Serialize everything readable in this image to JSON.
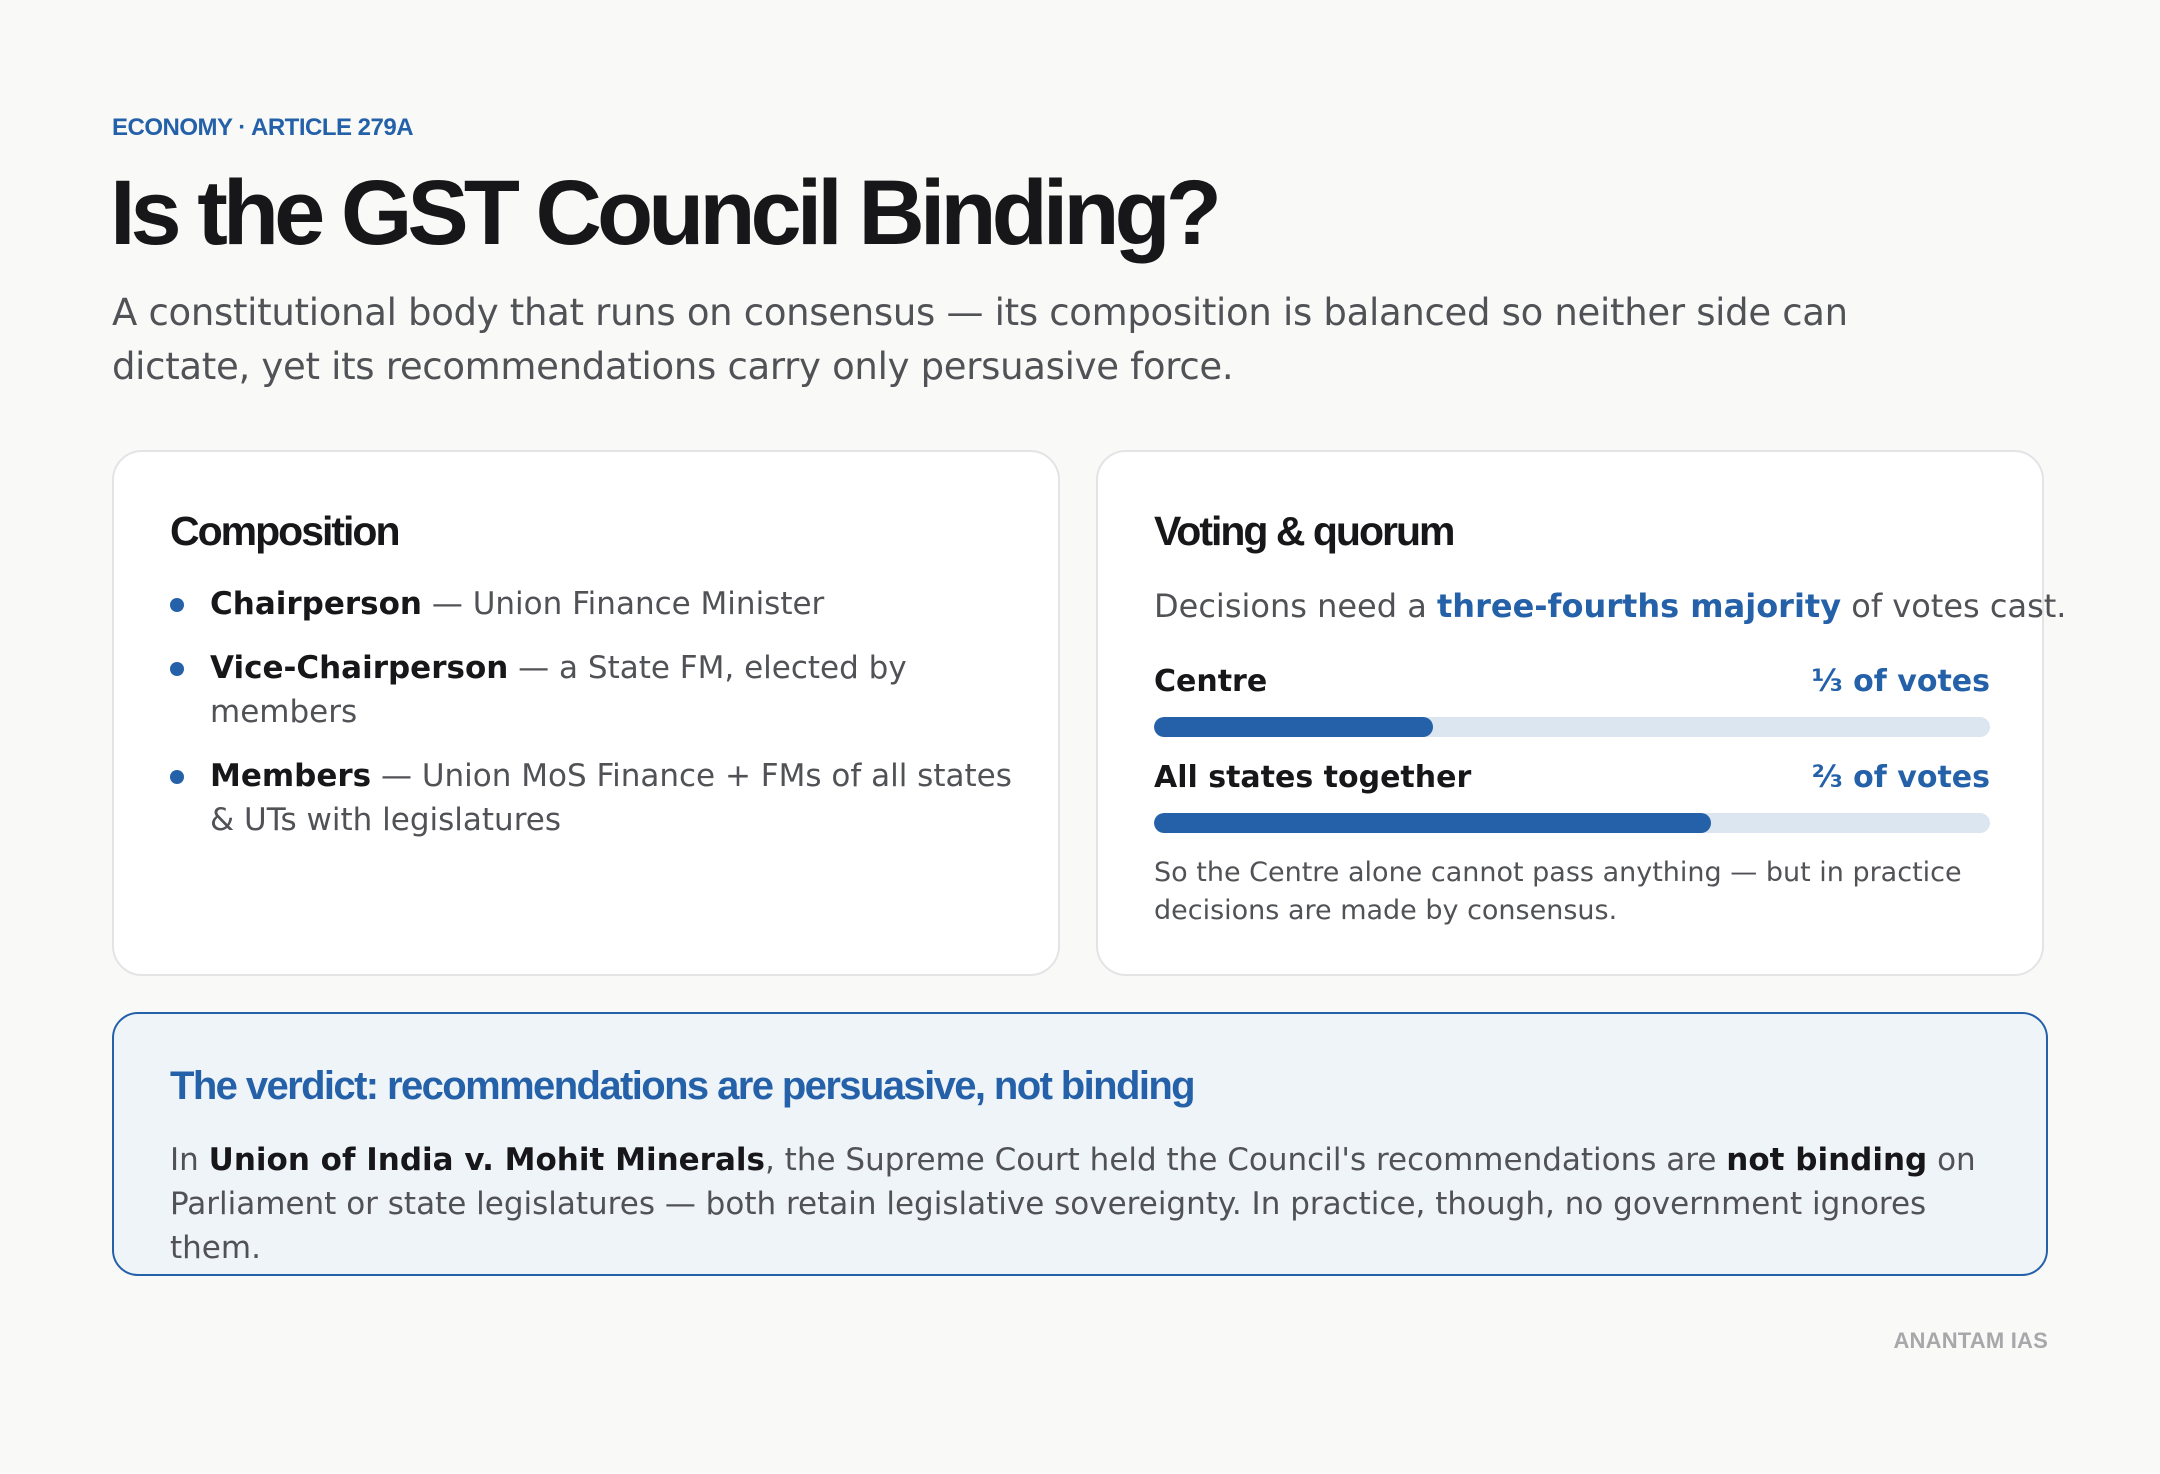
{
  "header": {
    "eyebrow": "ECONOMY · ARTICLE 279A",
    "title": "Is the GST Council Binding?",
    "subtitle": "A constitutional body that runs on consensus — its composition is balanced so neither side can dictate, yet its recommendations carry only persuasive force."
  },
  "composition": {
    "title": "Composition",
    "items": [
      {
        "term": "Chairperson",
        "desc": " — Union Finance Minister"
      },
      {
        "term": "Vice-Chairperson",
        "desc": " — a State FM, elected by members"
      },
      {
        "term": "Members",
        "desc": " — Union MoS Finance + FMs of all states & UTs with legislatures"
      }
    ]
  },
  "voting": {
    "title": "Voting & quorum",
    "lead_before": "Decisions need a ",
    "lead_highlight": "three-fourths majority",
    "lead_after": " of votes cast.",
    "bars": [
      {
        "label": "Centre",
        "value_text": "⅓ of votes",
        "share": 0.3333
      },
      {
        "label": "All states together",
        "value_text": "⅔ of votes",
        "share": 0.6667
      }
    ],
    "note": "So the Centre alone cannot pass anything — but in practice decisions are made by consensus."
  },
  "verdict": {
    "title": "The verdict: recommendations are persuasive, not binding",
    "body_1": "In ",
    "case_name": "Union of India v. Mohit Minerals",
    "body_2": ", the Supreme Court held the Council's recommendations are ",
    "emphasis": "not binding",
    "body_3": " on Parliament or state legislatures — both retain legislative sovereignty. In practice, though, no government ignores them."
  },
  "footer": {
    "brand": "ANANTAM IAS"
  },
  "colors": {
    "accent": "#2561a8",
    "track": "#dce6f0",
    "verdict_bg": "#eff4f9"
  }
}
